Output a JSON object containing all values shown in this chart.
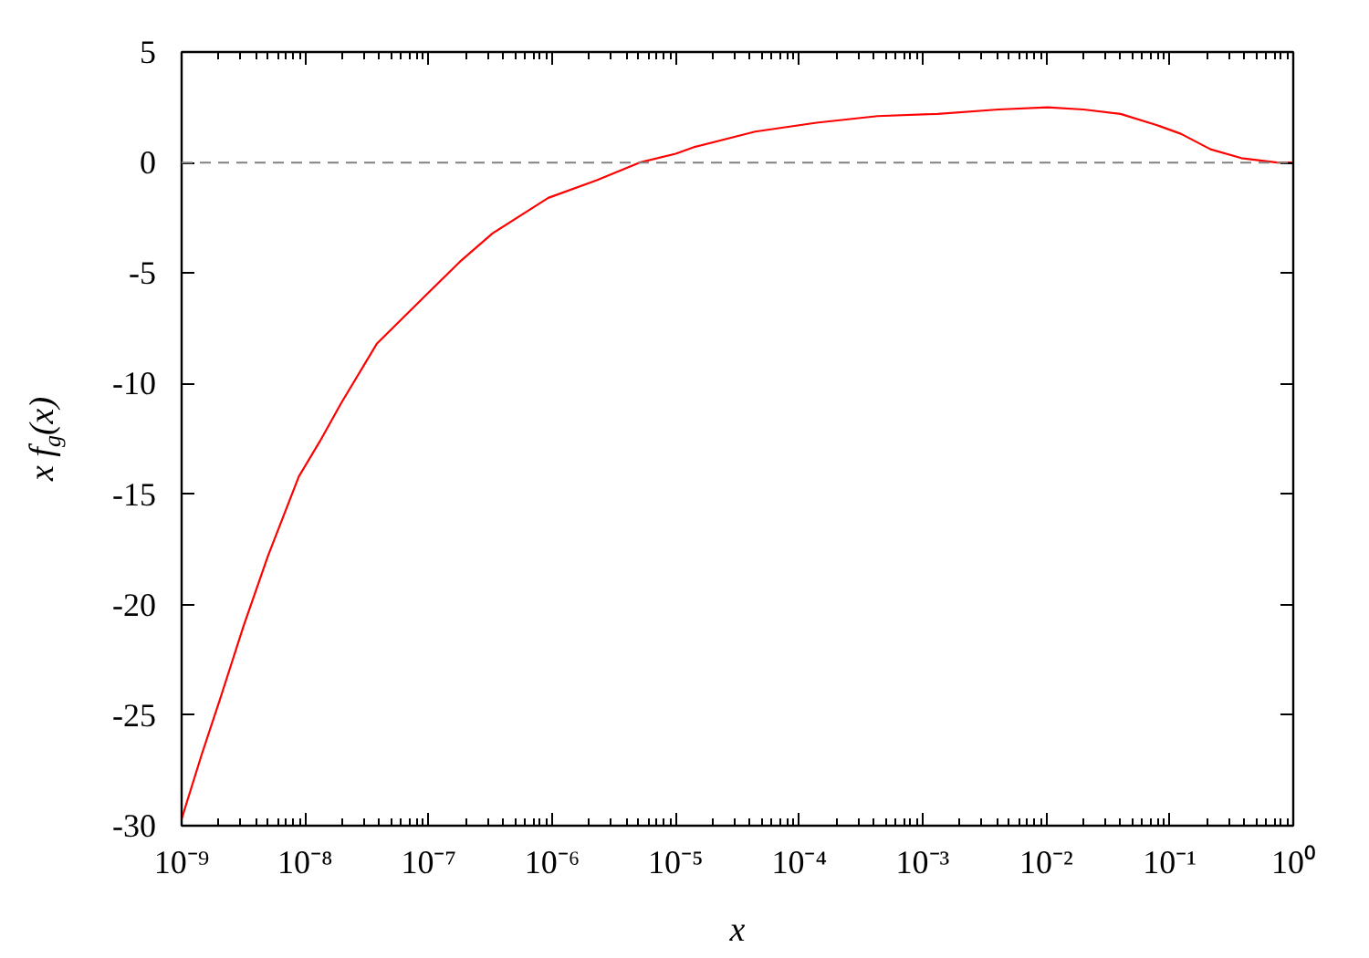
{
  "chart_data": {
    "type": "line",
    "xlabel": "x",
    "ylabel": "x f$_{g}$(x)",
    "log": "x",
    "x": [
      1e-09,
      1.45e-09,
      2.04e-09,
      3.16e-09,
      5e-09,
      8.9e-09,
      1.32e-08,
      1.95e-08,
      3.8e-08,
      9.5e-08,
      1.78e-07,
      3.3e-07,
      9.3e-07,
      2.3e-06,
      5.1e-06,
      1e-05,
      1.41e-05,
      4.4e-05,
      0.000138,
      0.00043,
      0.00132,
      0.0041,
      0.0102,
      0.02,
      0.04,
      0.078,
      0.123,
      0.214,
      0.38,
      0.74,
      1
    ],
    "series": [
      {
        "color": "#ff0000",
        "values": [
          -29.7,
          -26.8,
          -24.3,
          -21.0,
          -17.8,
          -14.2,
          -12.6,
          -10.9,
          -8.2,
          -6.0,
          -4.5,
          -3.2,
          -1.6,
          -0.8,
          0.0,
          0.4,
          0.7,
          1.4,
          1.8,
          2.1,
          2.2,
          2.4,
          2.5,
          2.4,
          2.2,
          1.7,
          1.3,
          0.6,
          0.2,
          0.0,
          0.0
        ]
      }
    ],
    "xlim": [
      1e-09,
      1
    ],
    "ylim": [
      -30,
      5
    ],
    "xticks": [
      {
        "value": 1e-09,
        "label": "10⁻⁹"
      },
      {
        "value": 1e-08,
        "label": "10⁻⁸"
      },
      {
        "value": 1e-07,
        "label": "10⁻⁷"
      },
      {
        "value": 1e-06,
        "label": "10⁻⁶"
      },
      {
        "value": 1e-05,
        "label": "10⁻⁵"
      },
      {
        "value": 0.0001,
        "label": "10⁻⁴"
      },
      {
        "value": 0.001,
        "label": "10⁻³"
      },
      {
        "value": 0.01,
        "label": "10⁻²"
      },
      {
        "value": 0.1,
        "label": "10⁻¹"
      },
      {
        "value": 1,
        "label": "10⁰"
      }
    ],
    "yticks": [
      -30,
      -25,
      -20,
      -15,
      -10,
      -5,
      0,
      5
    ],
    "ref_lines": [
      {
        "axis": "y",
        "value": 0,
        "color": "#808080",
        "line_style": "dashed"
      }
    ],
    "line_style": "solid"
  }
}
